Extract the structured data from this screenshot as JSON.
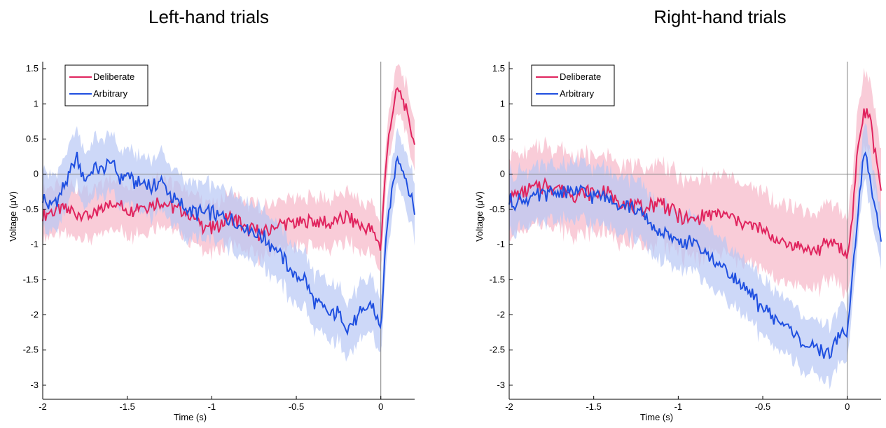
{
  "chart_data": [
    {
      "type": "line",
      "title": "Left-hand trials",
      "xlabel": "Time (s)",
      "ylabel": "Voltage (μV)",
      "xlim": [
        -2,
        0.2
      ],
      "ylim": [
        -3.2,
        1.6
      ],
      "xticks": [
        -2,
        -1.5,
        -1,
        -0.5,
        0
      ],
      "xtick_labels": [
        "-2",
        "-1.5",
        "-1",
        "-0.5",
        "0"
      ],
      "yticks": [
        -3,
        -2.5,
        -2,
        -1.5,
        -1,
        -0.5,
        0,
        0.5,
        1,
        1.5
      ],
      "ytick_labels": [
        "-3",
        "-2.5",
        "-2",
        "-1.5",
        "-1",
        "-0.5",
        "0",
        "0.5",
        "1",
        "1.5"
      ],
      "grid": false,
      "legend_position": "top-left",
      "reference_lines": {
        "x": 0,
        "y": 0
      },
      "series": [
        {
          "name": "Deliberate",
          "color": "#e0245e",
          "band_color": "#f7b7c8",
          "x": [
            -2.0,
            -1.9,
            -1.8,
            -1.7,
            -1.6,
            -1.5,
            -1.4,
            -1.3,
            -1.2,
            -1.1,
            -1.0,
            -0.9,
            -0.8,
            -0.7,
            -0.6,
            -0.5,
            -0.4,
            -0.3,
            -0.2,
            -0.1,
            -0.05,
            0.0,
            0.02,
            0.05,
            0.08,
            0.1,
            0.12,
            0.15,
            0.2
          ],
          "values": [
            -0.6,
            -0.5,
            -0.55,
            -0.6,
            -0.4,
            -0.5,
            -0.45,
            -0.4,
            -0.5,
            -0.65,
            -0.8,
            -0.6,
            -0.75,
            -0.85,
            -0.7,
            -0.7,
            -0.65,
            -0.7,
            -0.6,
            -0.75,
            -0.8,
            -1.05,
            -0.2,
            0.6,
            1.0,
            1.22,
            1.1,
            0.9,
            0.42
          ],
          "band_half_width": 0.35
        },
        {
          "name": "Arbitrary",
          "color": "#1f4fe0",
          "band_color": "#b8c8f5",
          "x": [
            -2.0,
            -1.95,
            -1.9,
            -1.85,
            -1.8,
            -1.75,
            -1.7,
            -1.65,
            -1.6,
            -1.55,
            -1.5,
            -1.45,
            -1.4,
            -1.35,
            -1.3,
            -1.25,
            -1.2,
            -1.1,
            -1.0,
            -0.9,
            -0.8,
            -0.7,
            -0.6,
            -0.5,
            -0.45,
            -0.4,
            -0.35,
            -0.3,
            -0.25,
            -0.2,
            -0.1,
            -0.05,
            0.0,
            0.02,
            0.05,
            0.08,
            0.1,
            0.13,
            0.16,
            0.2
          ],
          "values": [
            -0.35,
            -0.45,
            -0.3,
            -0.05,
            0.22,
            -0.1,
            0.1,
            0.05,
            0.2,
            -0.05,
            0.0,
            -0.15,
            -0.1,
            -0.2,
            -0.1,
            -0.3,
            -0.4,
            -0.55,
            -0.55,
            -0.65,
            -0.75,
            -0.9,
            -1.1,
            -1.5,
            -1.45,
            -1.8,
            -1.9,
            -2.0,
            -1.95,
            -2.2,
            -1.95,
            -1.85,
            -2.25,
            -1.3,
            -0.5,
            0.0,
            0.28,
            0.1,
            -0.2,
            -0.52
          ],
          "band_half_width": 0.4
        }
      ]
    },
    {
      "type": "line",
      "title": "Right-hand trials",
      "xlabel": "Time (s)",
      "ylabel": "Voltage (μV)",
      "xlim": [
        -2,
        0.2
      ],
      "ylim": [
        -3.2,
        1.6
      ],
      "xticks": [
        -2,
        -1.5,
        -1,
        -0.5,
        0
      ],
      "xtick_labels": [
        "-2",
        "-1.5",
        "-1",
        "-0.5",
        "0"
      ],
      "yticks": [
        -3,
        -2.5,
        -2,
        -1.5,
        -1,
        -0.5,
        0,
        0.5,
        1,
        1.5
      ],
      "ytick_labels": [
        "-3",
        "-2.5",
        "-2",
        "-1.5",
        "-1",
        "-0.5",
        "0",
        "0.5",
        "1",
        "1.5"
      ],
      "grid": false,
      "legend_position": "top-left",
      "reference_lines": {
        "x": 0,
        "y": 0
      },
      "series": [
        {
          "name": "Deliberate",
          "color": "#e0245e",
          "band_color": "#f7b7c8",
          "x": [
            -2.0,
            -1.9,
            -1.8,
            -1.7,
            -1.6,
            -1.5,
            -1.4,
            -1.3,
            -1.2,
            -1.1,
            -1.0,
            -0.9,
            -0.8,
            -0.7,
            -0.6,
            -0.5,
            -0.4,
            -0.3,
            -0.2,
            -0.1,
            -0.05,
            0.0,
            0.03,
            0.06,
            0.1,
            0.13,
            0.16,
            0.2
          ],
          "values": [
            -0.35,
            -0.25,
            -0.15,
            -0.2,
            -0.3,
            -0.25,
            -0.3,
            -0.45,
            -0.5,
            -0.4,
            -0.6,
            -0.65,
            -0.55,
            -0.6,
            -0.7,
            -0.8,
            -0.95,
            -1.0,
            -1.1,
            -0.95,
            -1.0,
            -1.2,
            -0.6,
            0.3,
            0.9,
            0.8,
            0.4,
            -0.2
          ],
          "band_half_width": 0.55
        },
        {
          "name": "Arbitrary",
          "color": "#1f4fe0",
          "band_color": "#b8c8f5",
          "x": [
            -2.0,
            -1.9,
            -1.8,
            -1.7,
            -1.6,
            -1.5,
            -1.4,
            -1.3,
            -1.2,
            -1.1,
            -1.0,
            -0.9,
            -0.8,
            -0.7,
            -0.6,
            -0.5,
            -0.4,
            -0.3,
            -0.2,
            -0.15,
            -0.1,
            -0.05,
            0.0,
            0.03,
            0.06,
            0.1,
            0.13,
            0.16,
            0.2
          ],
          "values": [
            -0.4,
            -0.35,
            -0.3,
            -0.25,
            -0.25,
            -0.3,
            -0.35,
            -0.45,
            -0.6,
            -0.85,
            -0.95,
            -1.0,
            -1.2,
            -1.4,
            -1.65,
            -1.9,
            -2.1,
            -2.3,
            -2.5,
            -2.5,
            -2.55,
            -2.3,
            -2.25,
            -1.5,
            -0.6,
            0.35,
            0.0,
            -0.5,
            -0.88
          ],
          "band_half_width": 0.4
        }
      ]
    }
  ]
}
